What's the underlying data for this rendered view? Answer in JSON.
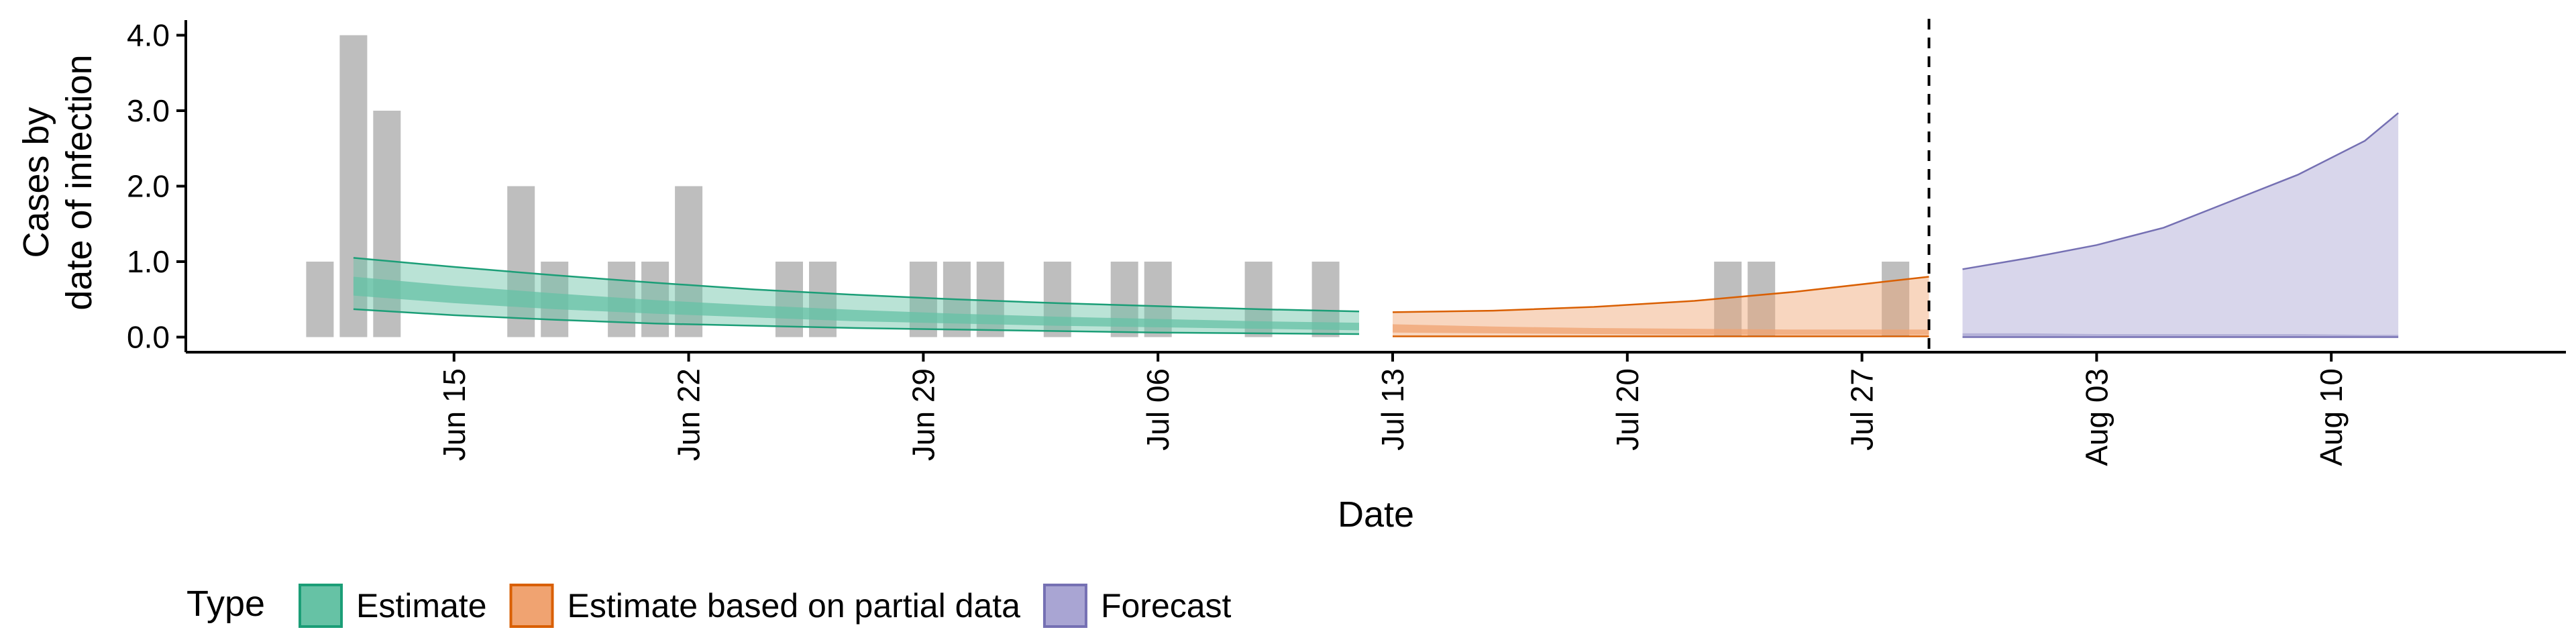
{
  "chart_data": {
    "type": "bar",
    "xlabel": "Date",
    "ylabel": [
      "Cases by",
      "date of infection"
    ],
    "ylim": [
      -0.2,
      4.2
    ],
    "xlim": [
      "2020-06-07",
      "2020-08-17"
    ],
    "y_ticks": [
      "0.0",
      "1.0",
      "2.0",
      "3.0",
      "4.0"
    ],
    "y_tick_values": [
      0,
      1,
      2,
      3,
      4
    ],
    "x_ticks": [
      "Jun 15",
      "Jun 22",
      "Jun 29",
      "Jul 06",
      "Jul 13",
      "Jul 20",
      "Jul 27",
      "Aug 03",
      "Aug 10"
    ],
    "x_tick_dates": [
      "2020-06-15",
      "2020-06-22",
      "2020-06-29",
      "2020-07-06",
      "2020-07-13",
      "2020-07-20",
      "2020-07-27",
      "2020-08-03",
      "2020-08-10"
    ],
    "grid": false,
    "forecast_cutoff_date": "2020-07-29",
    "bars": {
      "color": "#bebebe",
      "points": [
        {
          "date": "2020-06-11",
          "value": 1
        },
        {
          "date": "2020-06-12",
          "value": 4
        },
        {
          "date": "2020-06-13",
          "value": 3
        },
        {
          "date": "2020-06-17",
          "value": 2
        },
        {
          "date": "2020-06-18",
          "value": 1
        },
        {
          "date": "2020-06-20",
          "value": 1
        },
        {
          "date": "2020-06-21",
          "value": 1
        },
        {
          "date": "2020-06-22",
          "value": 2
        },
        {
          "date": "2020-06-25",
          "value": 1
        },
        {
          "date": "2020-06-26",
          "value": 1
        },
        {
          "date": "2020-06-29",
          "value": 1
        },
        {
          "date": "2020-06-30",
          "value": 1
        },
        {
          "date": "2020-07-01",
          "value": 1
        },
        {
          "date": "2020-07-03",
          "value": 1
        },
        {
          "date": "2020-07-05",
          "value": 1
        },
        {
          "date": "2020-07-06",
          "value": 1
        },
        {
          "date": "2020-07-09",
          "value": 1
        },
        {
          "date": "2020-07-11",
          "value": 1
        },
        {
          "date": "2020-07-23",
          "value": 1
        },
        {
          "date": "2020-07-24",
          "value": 1
        },
        {
          "date": "2020-07-28",
          "value": 1
        }
      ]
    },
    "series": [
      {
        "name": "Estimate",
        "type": "ribbon",
        "color": "#1b9e77",
        "fill": "#66c2a5",
        "x": [
          "2020-06-12",
          "2020-06-15",
          "2020-06-18",
          "2020-06-21",
          "2020-06-24",
          "2020-06-27",
          "2020-06-30",
          "2020-07-03",
          "2020-07-06",
          "2020-07-09",
          "2020-07-12"
        ],
        "outer_upper": [
          1.05,
          0.93,
          0.82,
          0.72,
          0.63,
          0.56,
          0.5,
          0.45,
          0.41,
          0.37,
          0.34
        ],
        "outer_lower": [
          0.37,
          0.29,
          0.23,
          0.18,
          0.15,
          0.12,
          0.1,
          0.08,
          0.06,
          0.05,
          0.04
        ],
        "inner_upper": [
          0.8,
          0.68,
          0.58,
          0.49,
          0.42,
          0.36,
          0.31,
          0.27,
          0.24,
          0.21,
          0.19
        ],
        "inner_lower": [
          0.55,
          0.45,
          0.37,
          0.31,
          0.26,
          0.21,
          0.18,
          0.15,
          0.13,
          0.11,
          0.09
        ]
      },
      {
        "name": "Estimate based on partial data",
        "type": "ribbon",
        "color": "#d95f02",
        "fill": "#f0a371",
        "x": [
          "2020-07-13",
          "2020-07-16",
          "2020-07-19",
          "2020-07-22",
          "2020-07-25",
          "2020-07-29"
        ],
        "outer_upper": [
          0.33,
          0.35,
          0.4,
          0.48,
          0.6,
          0.8
        ],
        "outer_lower": [
          0.01,
          0.01,
          0.01,
          0.01,
          0.01,
          0.01
        ],
        "inner_upper": [
          0.17,
          0.14,
          0.12,
          0.11,
          0.1,
          0.1
        ],
        "inner_lower": [
          0.06,
          0.05,
          0.04,
          0.03,
          0.03,
          0.03
        ]
      },
      {
        "name": "Forecast",
        "type": "ribbon",
        "color": "#7570b3",
        "fill": "#a9a5d3",
        "x": [
          "2020-07-30",
          "2020-08-01",
          "2020-08-03",
          "2020-08-05",
          "2020-08-07",
          "2020-08-09",
          "2020-08-11",
          "2020-08-12"
        ],
        "outer_upper": [
          0.9,
          1.05,
          1.22,
          1.45,
          1.8,
          2.15,
          2.6,
          2.97
        ],
        "outer_lower": [
          0.0,
          0.0,
          0.0,
          0.0,
          0.0,
          0.0,
          0.0,
          0.0
        ],
        "inner_upper": [
          0.05,
          0.05,
          0.04,
          0.04,
          0.04,
          0.04,
          0.03,
          0.03
        ],
        "inner_lower": [
          0.01,
          0.01,
          0.01,
          0.01,
          0.01,
          0.01,
          0.01,
          0.01
        ]
      }
    ],
    "legend": {
      "title": "Type",
      "position": "bottom",
      "items": [
        "Estimate",
        "Estimate based on partial data",
        "Forecast"
      ]
    }
  }
}
